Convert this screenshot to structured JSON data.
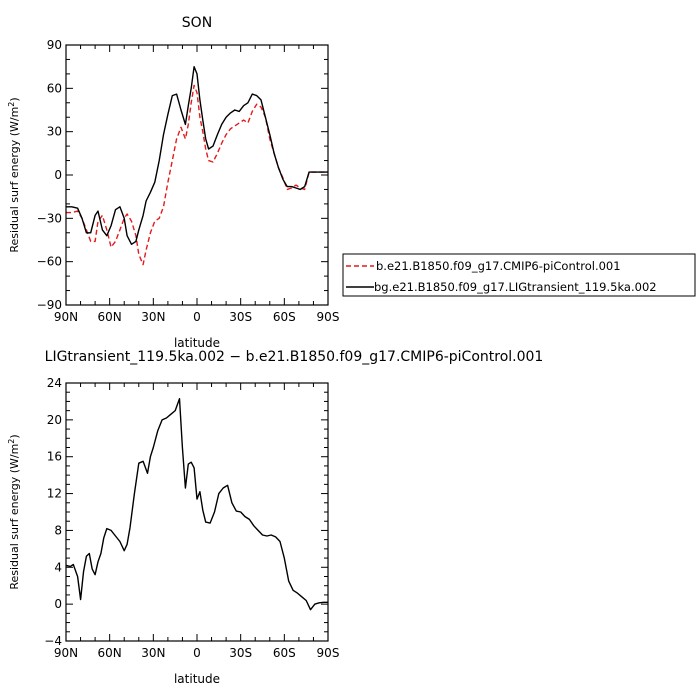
{
  "chart_data": [
    {
      "type": "line",
      "title": "SON",
      "xlabel": "latitude",
      "ylabel": "Residual surf energy (W/m²)",
      "ylabel_main": "Residual surf energy (W/m",
      "ylabel_sup": "2",
      "ylabel_end": ")",
      "xlim": [
        90,
        -90
      ],
      "ylim": [
        -90,
        90
      ],
      "x_ticks": [
        90,
        60,
        30,
        0,
        -30,
        -60,
        -90
      ],
      "x_tick_labels": [
        "90N",
        "60N",
        "30N",
        "0",
        "30S",
        "60S",
        "90S"
      ],
      "y_ticks": [
        -90,
        -60,
        -30,
        0,
        30,
        60,
        90
      ],
      "y_tick_labels": [
        "−90",
        "−60",
        "−30",
        "0",
        "30",
        "60",
        "90"
      ],
      "grid": false,
      "legend_position": "right",
      "series": [
        {
          "name": "b.e21.B1850.f09_g17.CMIP6-piControl.001",
          "color": "#e41a1c",
          "dash": "dashed",
          "x": [
            90,
            86,
            82,
            79,
            76,
            73,
            70,
            68,
            65,
            62,
            59,
            56,
            53,
            50,
            48,
            45,
            42,
            40,
            37,
            35,
            32,
            29,
            26,
            23,
            20,
            17,
            14,
            11,
            8,
            6,
            4,
            2,
            0,
            -2,
            -4,
            -6,
            -8,
            -11,
            -14,
            -17,
            -20,
            -23,
            -26,
            -29,
            -32,
            -35,
            -38,
            -41,
            -44,
            -47,
            -50,
            -53,
            -56,
            -59,
            -62,
            -65,
            -68,
            -71,
            -74,
            -77,
            -80,
            -83,
            -86,
            -90
          ],
          "y": [
            -26,
            -26,
            -25,
            -30,
            -38,
            -46,
            -46,
            -32,
            -28,
            -38,
            -50,
            -46,
            -38,
            -30,
            -27,
            -32,
            -42,
            -55,
            -62,
            -52,
            -40,
            -32,
            -30,
            -22,
            -5,
            10,
            25,
            33,
            25,
            35,
            50,
            62,
            57,
            40,
            30,
            18,
            10,
            9,
            15,
            22,
            28,
            32,
            34,
            36,
            38,
            36,
            44,
            49,
            47,
            40,
            25,
            15,
            5,
            -2,
            -10,
            -9,
            -7,
            -9,
            -10,
            2,
            2,
            2,
            2,
            2
          ]
        },
        {
          "name": "bg.e21.B1850.f09_g17.LIGtransient_119.5ka.002",
          "color": "#000000",
          "dash": "solid",
          "x": [
            90,
            86,
            82,
            79,
            76,
            73,
            70,
            68,
            65,
            62,
            59,
            56,
            53,
            50,
            48,
            45,
            42,
            40,
            37,
            35,
            32,
            29,
            26,
            23,
            20,
            17,
            14,
            11,
            8,
            6,
            4,
            2,
            0,
            -2,
            -4,
            -6,
            -8,
            -11,
            -14,
            -17,
            -20,
            -23,
            -26,
            -29,
            -32,
            -35,
            -38,
            -41,
            -44,
            -47,
            -50,
            -53,
            -56,
            -59,
            -62,
            -65,
            -68,
            -71,
            -74,
            -77,
            -80,
            -83,
            -86,
            -90
          ],
          "y": [
            -22,
            -22,
            -23,
            -30,
            -40,
            -40,
            -28,
            -25,
            -38,
            -42,
            -35,
            -24,
            -22,
            -30,
            -42,
            -48,
            -46,
            -38,
            -28,
            -18,
            -12,
            -5,
            10,
            28,
            42,
            55,
            56,
            45,
            35,
            48,
            60,
            75,
            70,
            52,
            38,
            25,
            18,
            20,
            28,
            35,
            40,
            43,
            45,
            44,
            48,
            50,
            56,
            55,
            52,
            40,
            28,
            15,
            5,
            -3,
            -8,
            -8,
            -9,
            -10,
            -8,
            2,
            2,
            2,
            2,
            2
          ]
        }
      ]
    },
    {
      "type": "line",
      "title": "LIGtransient_119.5ka.002 − b.e21.B1850.f09_g17.CMIP6-piControl.001",
      "xlabel": "latitude",
      "ylabel": "Residual surf energy (W/m²)",
      "ylabel_main": "Residual surf energy (W/m",
      "ylabel_sup": "2",
      "ylabel_end": ")",
      "xlim": [
        90,
        -90
      ],
      "ylim": [
        -4,
        24
      ],
      "x_ticks": [
        90,
        60,
        30,
        0,
        -30,
        -60,
        -90
      ],
      "x_tick_labels": [
        "90N",
        "60N",
        "30N",
        "0",
        "30S",
        "60S",
        "90S"
      ],
      "y_ticks": [
        -4,
        0,
        4,
        8,
        12,
        16,
        20,
        24
      ],
      "y_tick_labels": [
        "−4",
        "0",
        "4",
        "8",
        "12",
        "16",
        "20",
        "24"
      ],
      "grid": false,
      "series": [
        {
          "color": "#000000",
          "dash": "solid",
          "x": [
            90,
            87,
            85,
            82,
            80,
            78,
            76,
            74,
            72,
            70,
            68,
            66,
            64,
            62,
            59,
            56,
            53,
            50,
            48,
            46,
            43,
            40,
            37,
            34,
            32,
            30,
            27,
            24,
            21,
            18,
            15,
            12,
            10,
            8,
            6,
            4,
            2,
            0,
            -2,
            -4,
            -6,
            -9,
            -12,
            -15,
            -18,
            -21,
            -24,
            -27,
            -30,
            -33,
            -36,
            -39,
            -42,
            -45,
            -48,
            -51,
            -54,
            -57,
            -60,
            -63,
            -66,
            -69,
            -72,
            -75,
            -78,
            -81,
            -84,
            -87,
            -90
          ],
          "y": [
            4.2,
            4.1,
            4.3,
            3,
            0.5,
            3.5,
            5.2,
            5.5,
            3.8,
            3.2,
            4.6,
            5.5,
            7.2,
            8.2,
            8,
            7.4,
            6.8,
            5.8,
            6.5,
            8.3,
            12,
            15.3,
            15.5,
            14.2,
            16,
            17,
            18.8,
            20,
            20.2,
            20.6,
            21,
            22.3,
            17,
            12.6,
            15.2,
            15.4,
            14.8,
            11.4,
            12.2,
            10.2,
            8.9,
            8.8,
            10,
            12,
            12.6,
            12.9,
            11,
            10.1,
            10,
            9.5,
            9.2,
            8.5,
            8,
            7.5,
            7.4,
            7.5,
            7.3,
            6.8,
            5,
            2.5,
            1.5,
            1.2,
            0.8,
            0.4,
            -0.6,
            0,
            0.15,
            0.2,
            0.2
          ]
        }
      ]
    }
  ]
}
